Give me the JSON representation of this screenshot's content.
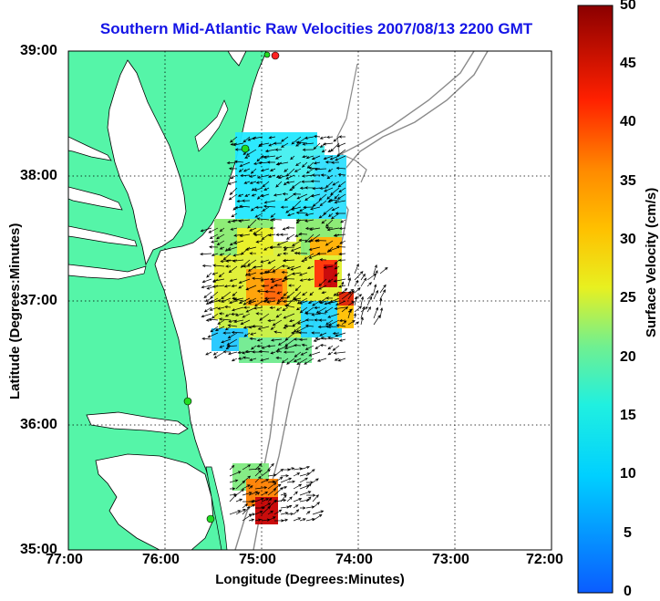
{
  "title": "Southern Mid-Atlantic Raw Velocities 2007/08/13 2200 GMT",
  "x_axis": {
    "label": "Longitude (Degrees:Minutes)",
    "ticks": [
      "77:00",
      "76:00",
      "75:00",
      "74:00",
      "73:00",
      "72:00"
    ]
  },
  "y_axis": {
    "label": "Latitude (Degrees:Minutes)",
    "ticks": [
      "39:00",
      "38:00",
      "37:00",
      "36:00",
      "35:00"
    ]
  },
  "colorbar": {
    "label": "Surface Velocity (cm/s)",
    "ticks": [
      "50",
      "45",
      "40",
      "35",
      "30",
      "25",
      "20",
      "15",
      "10",
      "5",
      "0"
    ],
    "range": [
      0,
      50
    ]
  },
  "colors": {
    "land": "#55f5a8",
    "title": "#1414e6",
    "station": "#22dd22",
    "station_red": "#ff2222"
  },
  "map": {
    "lon_range": [
      -77,
      -72
    ],
    "lat_range": [
      35,
      39
    ]
  }
}
